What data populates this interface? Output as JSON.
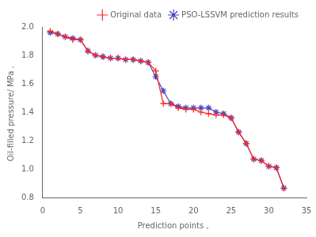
{
  "chart_data": {
    "type": "line",
    "xlabel": "Prediction points，",
    "ylabel": "Oil-filled pressure/ MPa，",
    "x": [
      1,
      2,
      3,
      4,
      5,
      6,
      7,
      8,
      9,
      10,
      11,
      12,
      13,
      14,
      15,
      16,
      17,
      18,
      19,
      20,
      21,
      22,
      23,
      24,
      25,
      26,
      27,
      28,
      29,
      30,
      31,
      32
    ],
    "series": [
      {
        "name": "Original data",
        "color": "#FF2222",
        "marker": "plus",
        "values": [
          1.97,
          1.95,
          1.93,
          1.91,
          1.91,
          1.83,
          1.8,
          1.79,
          1.78,
          1.78,
          1.77,
          1.77,
          1.76,
          1.75,
          1.69,
          1.46,
          1.46,
          1.43,
          1.42,
          1.42,
          1.4,
          1.39,
          1.38,
          1.38,
          1.36,
          1.26,
          1.18,
          1.07,
          1.06,
          1.02,
          1.01,
          0.865
        ]
      },
      {
        "name": "PSO-LSSVM prediction results",
        "color": "#4444BB",
        "marker": "star",
        "values": [
          1.96,
          1.95,
          1.93,
          1.92,
          1.91,
          1.83,
          1.8,
          1.79,
          1.78,
          1.78,
          1.77,
          1.77,
          1.76,
          1.75,
          1.65,
          1.55,
          1.46,
          1.44,
          1.43,
          1.43,
          1.43,
          1.43,
          1.4,
          1.39,
          1.36,
          1.26,
          1.18,
          1.07,
          1.06,
          1.02,
          1.01,
          0.865
        ]
      }
    ],
    "xlim": [
      0,
      35
    ],
    "xticks": [
      0,
      5,
      10,
      15,
      20,
      25,
      30,
      35
    ],
    "ylim": [
      0.8,
      2.0
    ],
    "yticks": [
      0.8,
      {
        "value": 1.0,
        "label": "1.0"
      },
      1.2,
      1.4,
      1.6,
      1.8,
      {
        "value": 2.0,
        "label": "2.0"
      }
    ],
    "grid": false,
    "legend": "upper right"
  }
}
